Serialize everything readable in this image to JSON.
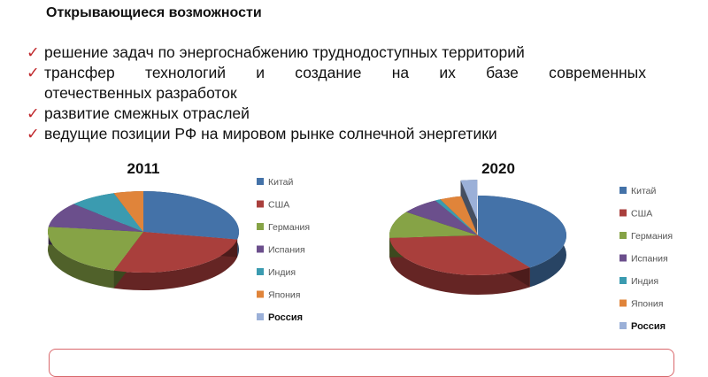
{
  "heading": "Открывающиеся возможности",
  "bullets": [
    {
      "line1": "решение задач по энергоснабжению труднодоступных территорий"
    },
    {
      "line1": "трансфер технологий и создание на их базе современных",
      "line2": "отечественных разработок"
    },
    {
      "line1": "развитие смежных отраслей"
    },
    {
      "line1": "ведущие позиции РФ на мировом рынке солнечной энергетики"
    }
  ],
  "check_icon": "checkmark-icon",
  "chart_data": [
    {
      "type": "pie",
      "title": "2011",
      "categories": [
        "Китай",
        "США",
        "Германия",
        "Испания",
        "Индия",
        "Япония",
        "Россия"
      ],
      "values": [
        28,
        27,
        22,
        10,
        8,
        5,
        0
      ],
      "colors": [
        "#4472a8",
        "#a93f3c",
        "#86a346",
        "#6b4f8c",
        "#3b9bb0",
        "#e0843a",
        "#9bb0d8"
      ],
      "legend_placement": "right",
      "style": "3d"
    },
    {
      "type": "pie",
      "title": "2020",
      "categories": [
        "Китай",
        "США",
        "Германия",
        "Испания",
        "Индия",
        "Япония",
        "Россия"
      ],
      "values": [
        40,
        34,
        11,
        7,
        1,
        4,
        3
      ],
      "colors": [
        "#4472a8",
        "#a93f3c",
        "#86a346",
        "#6b4f8c",
        "#3b9bb0",
        "#e0843a",
        "#9bb0d8"
      ],
      "exploded": "Россия",
      "legend_placement": "right",
      "style": "3d"
    }
  ]
}
